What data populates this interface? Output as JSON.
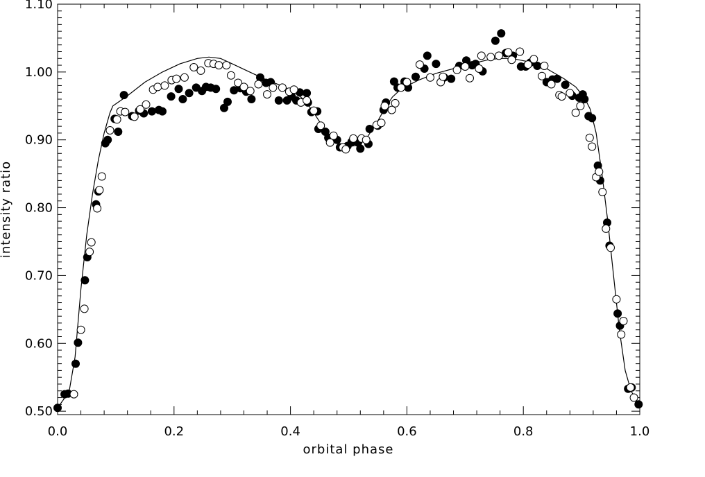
{
  "chart_data": {
    "type": "scatter",
    "xlabel": "orbital phase",
    "ylabel": "intensity ratio",
    "xlim": [
      0.0,
      1.0
    ],
    "ylim": [
      0.495,
      1.1
    ],
    "x_ticks": [
      0.0,
      0.2,
      0.4,
      0.6,
      0.8,
      1.0
    ],
    "x_tick_labels": [
      "0.0",
      "0.2",
      "0.4",
      "0.6",
      "0.8",
      "1.0"
    ],
    "y_ticks": [
      0.5,
      0.6,
      0.7,
      0.8,
      0.9,
      1.0,
      1.1
    ],
    "y_tick_labels": [
      "0.50",
      "0.60",
      "0.70",
      "0.80",
      "0.90",
      "1.00",
      "1.10"
    ],
    "grid": false,
    "legend": "none",
    "series": [
      {
        "marker": "filled-circle",
        "color": "#000000",
        "points": [
          [
            0.0,
            0.505
          ],
          [
            0.012,
            0.525
          ],
          [
            0.018,
            0.526
          ],
          [
            0.031,
            0.57
          ],
          [
            0.035,
            0.601
          ],
          [
            0.047,
            0.693
          ],
          [
            0.051,
            0.727
          ],
          [
            0.066,
            0.805
          ],
          [
            0.07,
            0.824
          ],
          [
            0.082,
            0.895
          ],
          [
            0.086,
            0.9
          ],
          [
            0.098,
            0.931
          ],
          [
            0.104,
            0.912
          ],
          [
            0.114,
            0.966
          ],
          [
            0.128,
            0.935
          ],
          [
            0.14,
            0.943
          ],
          [
            0.148,
            0.939
          ],
          [
            0.162,
            0.942
          ],
          [
            0.174,
            0.944
          ],
          [
            0.18,
            0.942
          ],
          [
            0.195,
            0.964
          ],
          [
            0.208,
            0.975
          ],
          [
            0.215,
            0.96
          ],
          [
            0.226,
            0.969
          ],
          [
            0.238,
            0.977
          ],
          [
            0.248,
            0.972
          ],
          [
            0.255,
            0.978
          ],
          [
            0.263,
            0.977
          ],
          [
            0.272,
            0.975
          ],
          [
            0.286,
            0.947
          ],
          [
            0.292,
            0.956
          ],
          [
            0.303,
            0.973
          ],
          [
            0.314,
            0.976
          ],
          [
            0.324,
            0.971
          ],
          [
            0.333,
            0.96
          ],
          [
            0.348,
            0.992
          ],
          [
            0.358,
            0.984
          ],
          [
            0.366,
            0.985
          ],
          [
            0.38,
            0.958
          ],
          [
            0.394,
            0.958
          ],
          [
            0.402,
            0.964
          ],
          [
            0.41,
            0.958
          ],
          [
            0.416,
            0.97
          ],
          [
            0.428,
            0.969
          ],
          [
            0.43,
            0.955
          ],
          [
            0.436,
            0.941
          ],
          [
            0.446,
            0.942
          ],
          [
            0.448,
            0.916
          ],
          [
            0.46,
            0.912
          ],
          [
            0.465,
            0.903
          ],
          [
            0.48,
            0.9
          ],
          [
            0.485,
            0.889
          ],
          [
            0.498,
            0.891
          ],
          [
            0.505,
            0.897
          ],
          [
            0.516,
            0.896
          ],
          [
            0.52,
            0.887
          ],
          [
            0.534,
            0.894
          ],
          [
            0.536,
            0.916
          ],
          [
            0.55,
            0.921
          ],
          [
            0.56,
            0.944
          ],
          [
            0.564,
            0.955
          ],
          [
            0.578,
            0.986
          ],
          [
            0.584,
            0.977
          ],
          [
            0.596,
            0.986
          ],
          [
            0.602,
            0.977
          ],
          [
            0.615,
            0.993
          ],
          [
            0.63,
            1.005
          ],
          [
            0.635,
            1.024
          ],
          [
            0.65,
            1.012
          ],
          [
            0.664,
            0.992
          ],
          [
            0.676,
            0.99
          ],
          [
            0.69,
            1.009
          ],
          [
            0.702,
            1.017
          ],
          [
            0.712,
            1.01
          ],
          [
            0.718,
            1.012
          ],
          [
            0.73,
            1.001
          ],
          [
            0.752,
            1.046
          ],
          [
            0.762,
            1.057
          ],
          [
            0.77,
            1.028
          ],
          [
            0.782,
            1.024
          ],
          [
            0.796,
            1.008
          ],
          [
            0.804,
            1.008
          ],
          [
            0.812,
            1.014
          ],
          [
            0.824,
            1.009
          ],
          [
            0.84,
            0.985
          ],
          [
            0.85,
            0.989
          ],
          [
            0.858,
            0.99
          ],
          [
            0.872,
            0.981
          ],
          [
            0.884,
            0.965
          ],
          [
            0.896,
            0.962
          ],
          [
            0.902,
            0.967
          ],
          [
            0.905,
            0.96
          ],
          [
            0.912,
            0.935
          ],
          [
            0.918,
            0.932
          ],
          [
            0.928,
            0.862
          ],
          [
            0.932,
            0.84
          ],
          [
            0.944,
            0.778
          ],
          [
            0.948,
            0.744
          ],
          [
            0.962,
            0.644
          ],
          [
            0.966,
            0.626
          ],
          [
            0.98,
            0.533
          ],
          [
            0.986,
            0.535
          ],
          [
            0.998,
            0.51
          ]
        ]
      },
      {
        "marker": "open-circle",
        "color": "#000000",
        "points": [
          [
            0.028,
            0.525
          ],
          [
            0.04,
            0.62
          ],
          [
            0.046,
            0.651
          ],
          [
            0.055,
            0.735
          ],
          [
            0.058,
            0.749
          ],
          [
            0.068,
            0.799
          ],
          [
            0.072,
            0.826
          ],
          [
            0.076,
            0.846
          ],
          [
            0.09,
            0.914
          ],
          [
            0.102,
            0.93
          ],
          [
            0.108,
            0.942
          ],
          [
            0.116,
            0.941
          ],
          [
            0.132,
            0.934
          ],
          [
            0.142,
            0.945
          ],
          [
            0.152,
            0.952
          ],
          [
            0.164,
            0.974
          ],
          [
            0.172,
            0.978
          ],
          [
            0.184,
            0.98
          ],
          [
            0.196,
            0.988
          ],
          [
            0.204,
            0.99
          ],
          [
            0.218,
            0.992
          ],
          [
            0.234,
            1.007
          ],
          [
            0.246,
            1.002
          ],
          [
            0.259,
            1.013
          ],
          [
            0.268,
            1.012
          ],
          [
            0.277,
            1.01
          ],
          [
            0.29,
            1.01
          ],
          [
            0.298,
            0.995
          ],
          [
            0.31,
            0.984
          ],
          [
            0.32,
            0.978
          ],
          [
            0.331,
            0.972
          ],
          [
            0.345,
            0.982
          ],
          [
            0.36,
            0.967
          ],
          [
            0.37,
            0.977
          ],
          [
            0.386,
            0.977
          ],
          [
            0.398,
            0.971
          ],
          [
            0.406,
            0.974
          ],
          [
            0.418,
            0.955
          ],
          [
            0.428,
            0.958
          ],
          [
            0.44,
            0.943
          ],
          [
            0.452,
            0.921
          ],
          [
            0.468,
            0.896
          ],
          [
            0.474,
            0.906
          ],
          [
            0.49,
            0.889
          ],
          [
            0.495,
            0.886
          ],
          [
            0.508,
            0.902
          ],
          [
            0.522,
            0.902
          ],
          [
            0.53,
            0.9
          ],
          [
            0.548,
            0.922
          ],
          [
            0.556,
            0.925
          ],
          [
            0.562,
            0.95
          ],
          [
            0.574,
            0.944
          ],
          [
            0.58,
            0.954
          ],
          [
            0.59,
            0.977
          ],
          [
            0.6,
            0.985
          ],
          [
            0.622,
            1.011
          ],
          [
            0.64,
            0.992
          ],
          [
            0.658,
            0.985
          ],
          [
            0.662,
            0.993
          ],
          [
            0.686,
            1.003
          ],
          [
            0.7,
            1.008
          ],
          [
            0.708,
            0.991
          ],
          [
            0.724,
            1.005
          ],
          [
            0.728,
            1.024
          ],
          [
            0.744,
            1.022
          ],
          [
            0.758,
            1.024
          ],
          [
            0.774,
            1.029
          ],
          [
            0.78,
            1.018
          ],
          [
            0.794,
            1.03
          ],
          [
            0.808,
            1.011
          ],
          [
            0.818,
            1.019
          ],
          [
            0.832,
            0.994
          ],
          [
            0.836,
            1.009
          ],
          [
            0.848,
            0.982
          ],
          [
            0.862,
            0.966
          ],
          [
            0.866,
            0.964
          ],
          [
            0.88,
            0.969
          ],
          [
            0.89,
            0.94
          ],
          [
            0.898,
            0.95
          ],
          [
            0.914,
            0.903
          ],
          [
            0.918,
            0.89
          ],
          [
            0.925,
            0.845
          ],
          [
            0.93,
            0.853
          ],
          [
            0.936,
            0.823
          ],
          [
            0.942,
            0.769
          ],
          [
            0.95,
            0.741
          ],
          [
            0.96,
            0.665
          ],
          [
            0.968,
            0.613
          ],
          [
            0.972,
            0.633
          ],
          [
            0.984,
            0.535
          ],
          [
            0.99,
            0.52
          ]
        ]
      },
      {
        "type": "line",
        "color": "#000000",
        "points": [
          [
            0.0,
            0.505
          ],
          [
            0.01,
            0.517
          ],
          [
            0.02,
            0.53
          ],
          [
            0.03,
            0.58
          ],
          [
            0.04,
            0.68
          ],
          [
            0.05,
            0.76
          ],
          [
            0.06,
            0.82
          ],
          [
            0.07,
            0.87
          ],
          [
            0.08,
            0.91
          ],
          [
            0.09,
            0.94
          ],
          [
            0.095,
            0.95
          ],
          [
            0.12,
            0.965
          ],
          [
            0.15,
            0.985
          ],
          [
            0.18,
            1.0
          ],
          [
            0.21,
            1.012
          ],
          [
            0.24,
            1.02
          ],
          [
            0.26,
            1.022
          ],
          [
            0.28,
            1.02
          ],
          [
            0.3,
            1.012
          ],
          [
            0.33,
            1.0
          ],
          [
            0.36,
            0.988
          ],
          [
            0.39,
            0.978
          ],
          [
            0.41,
            0.968
          ],
          [
            0.425,
            0.958
          ],
          [
            0.44,
            0.94
          ],
          [
            0.455,
            0.92
          ],
          [
            0.47,
            0.902
          ],
          [
            0.485,
            0.893
          ],
          [
            0.5,
            0.89
          ],
          [
            0.515,
            0.892
          ],
          [
            0.53,
            0.902
          ],
          [
            0.545,
            0.92
          ],
          [
            0.56,
            0.943
          ],
          [
            0.575,
            0.963
          ],
          [
            0.59,
            0.975
          ],
          [
            0.62,
            0.988
          ],
          [
            0.65,
            0.998
          ],
          [
            0.68,
            1.005
          ],
          [
            0.71,
            1.012
          ],
          [
            0.74,
            1.018
          ],
          [
            0.76,
            1.02
          ],
          [
            0.78,
            1.02
          ],
          [
            0.81,
            1.015
          ],
          [
            0.84,
            1.005
          ],
          [
            0.87,
            0.99
          ],
          [
            0.89,
            0.978
          ],
          [
            0.905,
            0.962
          ],
          [
            0.915,
            0.945
          ],
          [
            0.925,
            0.91
          ],
          [
            0.935,
            0.85
          ],
          [
            0.945,
            0.78
          ],
          [
            0.955,
            0.7
          ],
          [
            0.965,
            0.62
          ],
          [
            0.975,
            0.56
          ],
          [
            0.985,
            0.53
          ],
          [
            0.995,
            0.515
          ],
          [
            1.0,
            0.512
          ]
        ]
      }
    ]
  }
}
